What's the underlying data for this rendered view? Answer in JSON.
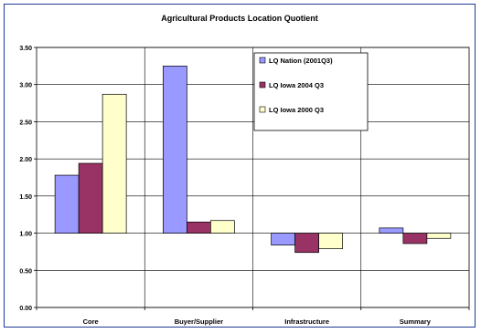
{
  "chart_data": {
    "type": "bar",
    "title": "Agricultural Products Location Quotient",
    "xlabel": "",
    "ylabel": "",
    "categories": [
      "Core",
      "Buyer/Supplier",
      "Infrastructure",
      "Summary"
    ],
    "baseline": 1.0,
    "ylim": [
      0,
      3.5
    ],
    "yticks": [
      "0.00",
      "0.50",
      "1.00",
      "1.50",
      "2.00",
      "2.50",
      "3.00",
      "3.50"
    ],
    "grid": "vertical-and-horizontal",
    "legend_position": "top-right",
    "series": [
      {
        "name": "LQ Nation (2001Q3)",
        "values": [
          1.78,
          3.25,
          0.84,
          1.07
        ],
        "color": "#9999ff"
      },
      {
        "name": "LQ Iowa 2004 Q3",
        "values": [
          1.94,
          1.15,
          0.74,
          0.86
        ],
        "color": "#993366"
      },
      {
        "name": "LQ Iowa 2000 Q3",
        "values": [
          2.87,
          1.17,
          0.79,
          0.93
        ],
        "color": "#ffffcc"
      }
    ]
  }
}
